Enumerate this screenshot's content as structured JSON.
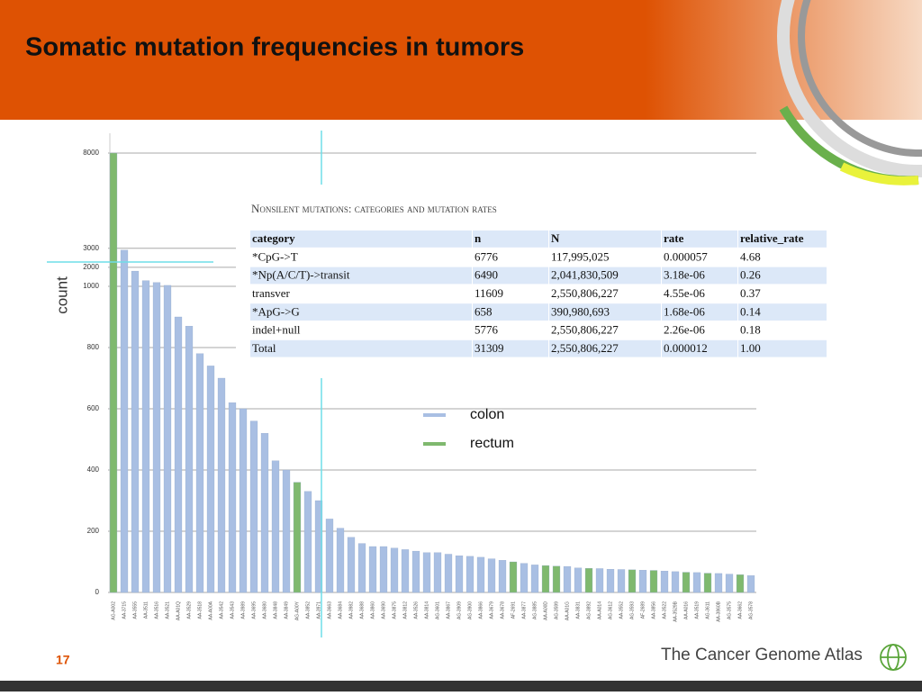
{
  "slide_title": "Somatic mutation frequencies in tumors",
  "page_number": "17",
  "logo_text": "The Cancer Genome Atlas",
  "chart_data": {
    "type": "bar",
    "y_label": "count",
    "scale": "broken",
    "break": 1000,
    "ylim": [
      0,
      8000
    ],
    "yticks": [
      0,
      200,
      400,
      600,
      800,
      1000,
      2000,
      3000,
      8000
    ],
    "grid": true,
    "legend": "center",
    "categories": [
      "AG-A002",
      "AA-3715",
      "AA-3555",
      "AA-3511",
      "AA-3516",
      "AA-3521",
      "AA-A01Q",
      "AA-3529",
      "AA-3518",
      "AA-A00A",
      "AA-3542",
      "AA-3543",
      "AA-3989",
      "AA-3695",
      "AA-3680",
      "AA-3848",
      "AA-3849",
      "AG-A00Y",
      "AA-3852",
      "AA-3971",
      "AA-3663",
      "AA-3684",
      "AA-3982",
      "AA-3688",
      "AA-3860",
      "AA-3690",
      "AA-3875",
      "AA-3812",
      "AA-3526",
      "AA-3814",
      "AG-3601",
      "AA-3867",
      "AG-3909",
      "AG-3900",
      "AA-3866",
      "AA-3679",
      "AA-3678",
      "AF-2691",
      "AA-3877",
      "AG-3885",
      "AA-A00D",
      "AG-3599",
      "AA-A01G",
      "AA-3831",
      "AG-3892",
      "AA-A014",
      "AG-3612",
      "AA-3552",
      "AG-3593",
      "AF-2689",
      "AA-3856",
      "AA-3522",
      "AA-3529B",
      "AA-A016",
      "AA-3519",
      "AG-3611",
      "AA-3860B",
      "AG-3575",
      "AA-3662",
      "AG-3578"
    ],
    "series": [
      {
        "name": "colon",
        "color": "#a9bfe3",
        "values": [
          null,
          2900,
          1800,
          1300,
          1200,
          1050,
          900,
          870,
          780,
          740,
          700,
          620,
          600,
          560,
          520,
          430,
          400,
          null,
          330,
          300,
          240,
          210,
          180,
          160,
          150,
          150,
          145,
          140,
          135,
          130,
          130,
          125,
          120,
          118,
          115,
          110,
          105,
          null,
          95,
          90,
          null,
          null,
          85,
          80,
          null,
          78,
          76,
          75,
          null,
          73,
          null,
          70,
          68,
          null,
          65,
          null,
          62,
          60,
          null,
          55
        ]
      },
      {
        "name": "rectum",
        "color": "#7fb96e",
        "values": [
          8000,
          null,
          null,
          null,
          null,
          null,
          null,
          null,
          null,
          null,
          null,
          null,
          null,
          null,
          null,
          null,
          null,
          360,
          null,
          null,
          null,
          null,
          null,
          null,
          null,
          null,
          null,
          null,
          null,
          null,
          null,
          null,
          null,
          null,
          null,
          null,
          null,
          100,
          null,
          null,
          88,
          86,
          null,
          null,
          79,
          null,
          null,
          null,
          74,
          null,
          72,
          null,
          null,
          66,
          null,
          63,
          null,
          null,
          58,
          null
        ]
      }
    ]
  },
  "table": {
    "title": "Nonsilent mutations: categories and mutation rates",
    "header": [
      "category",
      "n",
      "N",
      "rate",
      "relative_rate"
    ],
    "rows": [
      [
        "*CpG->T",
        "6776",
        "117,995,025",
        "0.000057",
        "4.68"
      ],
      [
        "*Np(A/C/T)->transit",
        "6490",
        "2,041,830,509",
        "3.18e-06",
        "0.26"
      ],
      [
        "transver",
        "11609",
        "2,550,806,227",
        "4.55e-06",
        "0.37"
      ],
      [
        "*ApG->G",
        "658",
        "390,980,693",
        "1.68e-06",
        "0.14"
      ],
      [
        "indel+null",
        "5776",
        "2,550,806,227",
        "2.26e-06",
        "0.18"
      ],
      [
        "Total",
        "31309",
        "2,550,806,227",
        "0.000012",
        "1.00"
      ]
    ]
  }
}
